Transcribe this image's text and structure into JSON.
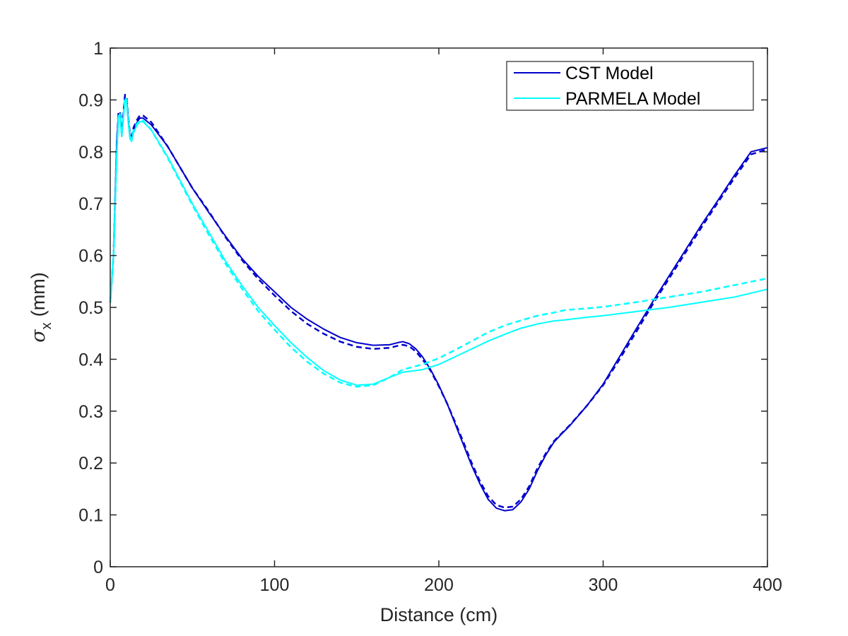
{
  "chart_data": {
    "type": "line",
    "title": "",
    "xlabel": "Distance (cm)",
    "ylabel": "(mm)",
    "ylabel_symbol": "σ",
    "ylabel_subscript": "x",
    "xlim": [
      0,
      400
    ],
    "ylim": [
      0,
      1
    ],
    "xticks": [
      0,
      100,
      200,
      300,
      400
    ],
    "yticks": [
      0,
      0.1,
      0.2,
      0.3,
      0.4,
      0.5,
      0.6,
      0.7,
      0.8,
      0.9,
      1
    ],
    "xtick_labels": [
      "0",
      "100",
      "200",
      "300",
      "400"
    ],
    "ytick_labels": [
      "0",
      "0.1",
      "0.2",
      "0.3",
      "0.4",
      "0.5",
      "0.6",
      "0.7",
      "0.8",
      "0.9",
      "1"
    ],
    "grid": false,
    "legend_position": "top-right",
    "legend": [
      "CST Model",
      "PARMELA Model"
    ],
    "series": [
      {
        "name": "CST Model",
        "style": "solid",
        "color": "#0000CC",
        "points": [
          [
            0,
            0.51
          ],
          [
            2,
            0.6
          ],
          [
            4,
            0.82
          ],
          [
            5,
            0.87
          ],
          [
            6,
            0.875
          ],
          [
            7,
            0.83
          ],
          [
            8,
            0.87
          ],
          [
            9,
            0.905
          ],
          [
            10,
            0.9
          ],
          [
            11,
            0.86
          ],
          [
            12,
            0.83
          ],
          [
            13,
            0.825
          ],
          [
            14,
            0.84
          ],
          [
            16,
            0.855
          ],
          [
            18,
            0.865
          ],
          [
            20,
            0.865
          ],
          [
            25,
            0.852
          ],
          [
            35,
            0.81
          ],
          [
            50,
            0.73
          ],
          [
            60,
            0.683
          ],
          [
            70,
            0.638
          ],
          [
            80,
            0.595
          ],
          [
            90,
            0.56
          ],
          [
            100,
            0.53
          ],
          [
            110,
            0.5
          ],
          [
            120,
            0.477
          ],
          [
            130,
            0.458
          ],
          [
            140,
            0.442
          ],
          [
            150,
            0.432
          ],
          [
            160,
            0.427
          ],
          [
            170,
            0.428
          ],
          [
            175,
            0.432
          ],
          [
            178,
            0.434
          ],
          [
            182,
            0.43
          ],
          [
            186,
            0.42
          ],
          [
            190,
            0.405
          ],
          [
            195,
            0.38
          ],
          [
            200,
            0.35
          ],
          [
            205,
            0.315
          ],
          [
            210,
            0.275
          ],
          [
            215,
            0.235
          ],
          [
            220,
            0.195
          ],
          [
            225,
            0.16
          ],
          [
            230,
            0.13
          ],
          [
            235,
            0.113
          ],
          [
            240,
            0.108
          ],
          [
            245,
            0.11
          ],
          [
            250,
            0.125
          ],
          [
            255,
            0.15
          ],
          [
            260,
            0.185
          ],
          [
            265,
            0.215
          ],
          [
            270,
            0.24
          ],
          [
            275,
            0.257
          ],
          [
            280,
            0.273
          ],
          [
            290,
            0.31
          ],
          [
            300,
            0.352
          ],
          [
            310,
            0.405
          ],
          [
            320,
            0.458
          ],
          [
            330,
            0.51
          ],
          [
            340,
            0.56
          ],
          [
            350,
            0.61
          ],
          [
            360,
            0.66
          ],
          [
            370,
            0.707
          ],
          [
            380,
            0.755
          ],
          [
            390,
            0.8
          ],
          [
            400,
            0.808
          ]
        ]
      },
      {
        "name": "CST Model (dashed)",
        "style": "dashed",
        "color": "#0000CC",
        "points": [
          [
            0,
            0.51
          ],
          [
            2,
            0.6
          ],
          [
            4,
            0.82
          ],
          [
            5,
            0.875
          ],
          [
            6,
            0.878
          ],
          [
            7,
            0.835
          ],
          [
            8,
            0.875
          ],
          [
            9,
            0.91
          ],
          [
            10,
            0.905
          ],
          [
            11,
            0.865
          ],
          [
            12,
            0.835
          ],
          [
            13,
            0.83
          ],
          [
            14,
            0.845
          ],
          [
            16,
            0.86
          ],
          [
            18,
            0.87
          ],
          [
            20,
            0.87
          ],
          [
            25,
            0.857
          ],
          [
            35,
            0.81
          ],
          [
            50,
            0.73
          ],
          [
            60,
            0.685
          ],
          [
            70,
            0.636
          ],
          [
            80,
            0.592
          ],
          [
            90,
            0.555
          ],
          [
            100,
            0.523
          ],
          [
            110,
            0.493
          ],
          [
            120,
            0.468
          ],
          [
            130,
            0.449
          ],
          [
            140,
            0.434
          ],
          [
            150,
            0.424
          ],
          [
            160,
            0.42
          ],
          [
            170,
            0.422
          ],
          [
            175,
            0.426
          ],
          [
            178,
            0.428
          ],
          [
            182,
            0.425
          ],
          [
            186,
            0.415
          ],
          [
            190,
            0.4
          ],
          [
            195,
            0.378
          ],
          [
            200,
            0.348
          ],
          [
            205,
            0.315
          ],
          [
            210,
            0.278
          ],
          [
            215,
            0.24
          ],
          [
            220,
            0.2
          ],
          [
            225,
            0.165
          ],
          [
            230,
            0.136
          ],
          [
            235,
            0.119
          ],
          [
            240,
            0.114
          ],
          [
            245,
            0.116
          ],
          [
            250,
            0.13
          ],
          [
            255,
            0.155
          ],
          [
            260,
            0.19
          ],
          [
            265,
            0.218
          ],
          [
            270,
            0.242
          ],
          [
            275,
            0.258
          ],
          [
            280,
            0.274
          ],
          [
            290,
            0.31
          ],
          [
            300,
            0.35
          ],
          [
            310,
            0.4
          ],
          [
            320,
            0.452
          ],
          [
            330,
            0.505
          ],
          [
            340,
            0.555
          ],
          [
            350,
            0.605
          ],
          [
            360,
            0.655
          ],
          [
            370,
            0.703
          ],
          [
            380,
            0.75
          ],
          [
            390,
            0.795
          ],
          [
            400,
            0.805
          ]
        ]
      },
      {
        "name": "PARMELA Model",
        "style": "solid",
        "color": "#00FFFF",
        "points": [
          [
            0,
            0.51
          ],
          [
            2,
            0.6
          ],
          [
            4,
            0.8
          ],
          [
            5,
            0.865
          ],
          [
            6,
            0.87
          ],
          [
            7,
            0.83
          ],
          [
            8,
            0.865
          ],
          [
            9,
            0.9
          ],
          [
            10,
            0.895
          ],
          [
            11,
            0.855
          ],
          [
            12,
            0.825
          ],
          [
            13,
            0.82
          ],
          [
            14,
            0.835
          ],
          [
            16,
            0.85
          ],
          [
            18,
            0.858
          ],
          [
            20,
            0.858
          ],
          [
            25,
            0.842
          ],
          [
            35,
            0.79
          ],
          [
            50,
            0.7
          ],
          [
            60,
            0.645
          ],
          [
            70,
            0.59
          ],
          [
            80,
            0.543
          ],
          [
            90,
            0.5
          ],
          [
            100,
            0.465
          ],
          [
            110,
            0.432
          ],
          [
            120,
            0.403
          ],
          [
            130,
            0.378
          ],
          [
            140,
            0.36
          ],
          [
            150,
            0.35
          ],
          [
            160,
            0.352
          ],
          [
            170,
            0.365
          ],
          [
            178,
            0.375
          ],
          [
            190,
            0.38
          ],
          [
            200,
            0.39
          ],
          [
            210,
            0.405
          ],
          [
            220,
            0.42
          ],
          [
            230,
            0.435
          ],
          [
            240,
            0.448
          ],
          [
            250,
            0.46
          ],
          [
            260,
            0.468
          ],
          [
            270,
            0.474
          ],
          [
            277,
            0.476
          ],
          [
            290,
            0.481
          ],
          [
            300,
            0.484
          ],
          [
            320,
            0.492
          ],
          [
            340,
            0.5
          ],
          [
            360,
            0.51
          ],
          [
            380,
            0.52
          ],
          [
            400,
            0.535
          ]
        ]
      },
      {
        "name": "PARMELA Model (dashed)",
        "style": "dashed",
        "color": "#00FFFF",
        "points": [
          [
            0,
            0.51
          ],
          [
            2,
            0.6
          ],
          [
            4,
            0.8
          ],
          [
            5,
            0.868
          ],
          [
            6,
            0.873
          ],
          [
            7,
            0.833
          ],
          [
            8,
            0.868
          ],
          [
            9,
            0.905
          ],
          [
            10,
            0.9
          ],
          [
            11,
            0.86
          ],
          [
            12,
            0.83
          ],
          [
            13,
            0.825
          ],
          [
            14,
            0.84
          ],
          [
            16,
            0.853
          ],
          [
            18,
            0.86
          ],
          [
            20,
            0.86
          ],
          [
            25,
            0.842
          ],
          [
            35,
            0.788
          ],
          [
            50,
            0.697
          ],
          [
            60,
            0.64
          ],
          [
            70,
            0.585
          ],
          [
            80,
            0.537
          ],
          [
            90,
            0.493
          ],
          [
            100,
            0.457
          ],
          [
            110,
            0.423
          ],
          [
            120,
            0.395
          ],
          [
            130,
            0.372
          ],
          [
            140,
            0.355
          ],
          [
            150,
            0.347
          ],
          [
            160,
            0.35
          ],
          [
            170,
            0.365
          ],
          [
            178,
            0.38
          ],
          [
            190,
            0.39
          ],
          [
            200,
            0.402
          ],
          [
            210,
            0.418
          ],
          [
            220,
            0.435
          ],
          [
            230,
            0.452
          ],
          [
            240,
            0.465
          ],
          [
            250,
            0.475
          ],
          [
            260,
            0.484
          ],
          [
            270,
            0.49
          ],
          [
            277,
            0.495
          ],
          [
            290,
            0.498
          ],
          [
            300,
            0.501
          ],
          [
            320,
            0.51
          ],
          [
            340,
            0.52
          ],
          [
            360,
            0.53
          ],
          [
            380,
            0.543
          ],
          [
            400,
            0.556
          ]
        ]
      }
    ]
  }
}
